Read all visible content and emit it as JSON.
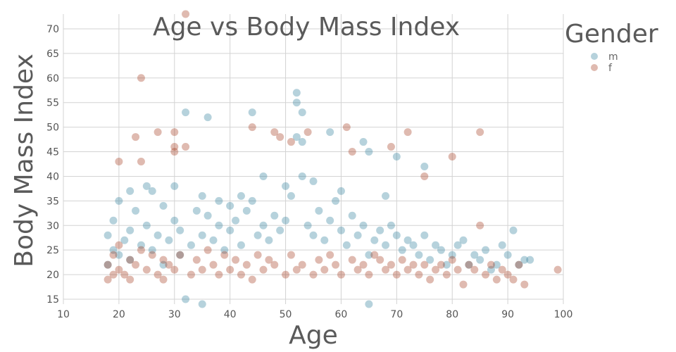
{
  "chart_data": {
    "type": "scatter",
    "title": "Age vs Body Mass Index",
    "xlabel": "Age",
    "ylabel": "Body Mass Index",
    "xlim": [
      10,
      100
    ],
    "ylim": [
      14,
      73
    ],
    "x_ticks": [
      10,
      20,
      30,
      40,
      50,
      60,
      70,
      80,
      90,
      100
    ],
    "y_ticks": [
      15,
      20,
      25,
      30,
      35,
      40,
      45,
      50,
      55,
      60,
      65,
      70
    ],
    "grid": true,
    "legend": {
      "title": "Gender",
      "position": "top-right"
    },
    "series": [
      {
        "name": "m",
        "color": "#2e7d9a",
        "x": [
          18,
          18,
          19,
          19,
          20,
          20,
          21,
          22,
          22,
          23,
          24,
          25,
          25,
          26,
          27,
          28,
          28,
          29,
          30,
          31,
          31,
          32,
          33,
          34,
          35,
          35,
          36,
          37,
          38,
          39,
          40,
          40,
          41,
          42,
          43,
          44,
          45,
          46,
          47,
          48,
          49,
          50,
          51,
          52,
          52,
          53,
          53,
          54,
          55,
          56,
          57,
          58,
          59,
          60,
          61,
          62,
          63,
          64,
          65,
          65,
          66,
          67,
          68,
          69,
          70,
          71,
          72,
          73,
          74,
          75,
          76,
          77,
          78,
          79,
          80,
          81,
          82,
          83,
          84,
          85,
          86,
          87,
          88,
          89,
          90,
          91,
          92,
          93,
          94,
          32,
          35,
          36,
          44,
          52,
          53,
          58,
          64,
          65,
          70,
          75,
          22,
          26,
          30,
          38,
          42,
          46,
          50,
          55,
          60,
          68
        ],
        "y": [
          22,
          28,
          25,
          31,
          24,
          35,
          27,
          29,
          23,
          33,
          26,
          30,
          38,
          25,
          28,
          34,
          22,
          27,
          31,
          29,
          24,
          53,
          26,
          33,
          28,
          36,
          32,
          27,
          30,
          25,
          34,
          29,
          31,
          26,
          33,
          35,
          28,
          30,
          27,
          32,
          29,
          31,
          36,
          48,
          57,
          47,
          53,
          30,
          28,
          33,
          27,
          31,
          35,
          29,
          26,
          32,
          28,
          30,
          24,
          14,
          27,
          29,
          26,
          30,
          28,
          25,
          27,
          26,
          24,
          28,
          23,
          26,
          25,
          22,
          24,
          26,
          27,
          22,
          24,
          23,
          25,
          21,
          22,
          26,
          24,
          29,
          22,
          23,
          23,
          15,
          14,
          52,
          53,
          55,
          40,
          49,
          47,
          45,
          44,
          42,
          37,
          37,
          38,
          35,
          36,
          40,
          38,
          39,
          37,
          36
        ]
      },
      {
        "name": "f",
        "color": "#a33a1e",
        "x": [
          18,
          18,
          19,
          19,
          20,
          20,
          21,
          22,
          22,
          23,
          24,
          24,
          25,
          26,
          27,
          28,
          28,
          29,
          30,
          30,
          31,
          32,
          33,
          34,
          35,
          36,
          37,
          38,
          39,
          40,
          41,
          42,
          43,
          44,
          44,
          45,
          46,
          47,
          48,
          49,
          50,
          51,
          52,
          53,
          54,
          55,
          56,
          57,
          58,
          59,
          60,
          61,
          62,
          63,
          64,
          65,
          66,
          67,
          68,
          69,
          70,
          71,
          72,
          73,
          74,
          75,
          76,
          77,
          78,
          79,
          80,
          81,
          82,
          83,
          84,
          85,
          86,
          87,
          88,
          89,
          90,
          91,
          92,
          93,
          99,
          32,
          24,
          23,
          27,
          30,
          48,
          51,
          62,
          69,
          72,
          85,
          75,
          80,
          20,
          30
        ],
        "y": [
          19,
          22,
          20,
          24,
          21,
          26,
          20,
          23,
          19,
          22,
          60,
          25,
          21,
          24,
          20,
          23,
          19,
          22,
          21,
          49,
          24,
          73,
          20,
          23,
          21,
          25,
          22,
          20,
          24,
          21,
          23,
          20,
          22,
          19,
          50,
          24,
          21,
          23,
          22,
          48,
          20,
          24,
          21,
          22,
          49,
          20,
          23,
          21,
          24,
          22,
          20,
          50,
          23,
          21,
          22,
          20,
          24,
          23,
          21,
          22,
          20,
          23,
          21,
          22,
          20,
          22,
          19,
          21,
          22,
          20,
          23,
          21,
          18,
          22,
          21,
          49,
          20,
          22,
          19,
          21,
          20,
          19,
          22,
          18,
          21,
          46,
          43,
          48,
          49,
          46,
          49,
          47,
          45,
          46,
          49,
          30,
          40,
          44,
          43,
          45
        ]
      }
    ]
  }
}
